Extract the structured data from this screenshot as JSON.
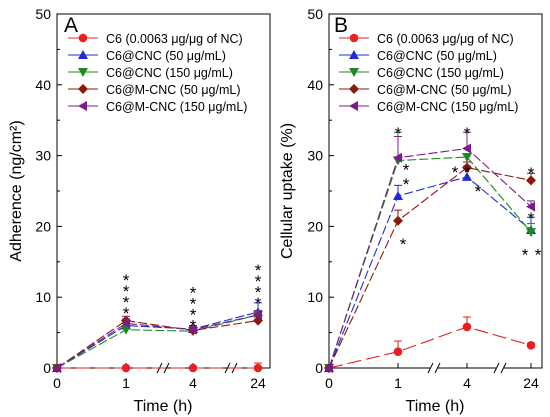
{
  "legend_items": [
    {
      "label": "C6 (0.0063 μg/μg of NC)",
      "color": "#e8201f",
      "marker": "circle"
    },
    {
      "label": "C6@CNC (50 μg/mL)",
      "color": "#1f2bd6",
      "marker": "triangle-up"
    },
    {
      "label": "C6@CNC (150 μg/mL)",
      "color": "#1e8a1e",
      "marker": "triangle-down"
    },
    {
      "label": "C6@M-CNC (50 μg/mL)",
      "color": "#8b1a0d",
      "marker": "diamond"
    },
    {
      "label": "C6@M-CNC (150 μg/mL)",
      "color": "#7a1c8c",
      "marker": "triangle-left"
    }
  ],
  "chart_data": [
    {
      "type": "line",
      "panel_label": "A",
      "ylabel": "Adherence (ng/cm²)",
      "xlabel": "Time (h)",
      "ylim": [
        0,
        50
      ],
      "x_ticks": [
        "0",
        "1",
        "4",
        "24"
      ],
      "y_ticks": [
        "0",
        "10",
        "20",
        "30",
        "40",
        "50"
      ],
      "axis_breaks": "between 1–4 and 4–24",
      "legend_position": "top-left",
      "series": [
        {
          "name": "C6 (0.0063 μg/μg of NC)",
          "values": [
            0,
            0,
            0,
            0
          ],
          "errors": [
            0,
            0,
            0,
            0.7
          ]
        },
        {
          "name": "C6@CNC (50 μg/mL)",
          "values": [
            0,
            6.0,
            5.5,
            7.9
          ],
          "errors": [
            0,
            0.6,
            0.5,
            1.3
          ]
        },
        {
          "name": "C6@CNC (150 μg/mL)",
          "values": [
            0,
            5.4,
            5.2,
            7.5
          ],
          "errors": [
            0,
            0.5,
            0.5,
            0.6
          ]
        },
        {
          "name": "C6@M-CNC (50 μg/mL)",
          "values": [
            0,
            6.7,
            5.3,
            6.7
          ],
          "errors": [
            0,
            0.6,
            0.5,
            0.5
          ]
        },
        {
          "name": "C6@M-CNC (150 μg/mL)",
          "values": [
            0,
            6.3,
            5.4,
            7.5
          ],
          "errors": [
            0,
            0.6,
            0.5,
            0.6
          ]
        }
      ],
      "annotations": [
        {
          "x": "1",
          "text": "****"
        },
        {
          "x": "4",
          "text": "****"
        },
        {
          "x": "24",
          "text": "****"
        }
      ]
    },
    {
      "type": "line",
      "panel_label": "B",
      "ylabel": "Cellular uptake (%)",
      "xlabel": "Time (h)",
      "ylim": [
        0,
        50
      ],
      "x_ticks": [
        "0",
        "1",
        "4",
        "24"
      ],
      "y_ticks": [
        "0",
        "10",
        "20",
        "30",
        "40",
        "50"
      ],
      "axis_breaks": "between 1–4 and 4–24",
      "legend_position": "top-left",
      "series": [
        {
          "name": "C6 (0.0063 μg/μg of NC)",
          "values": [
            0,
            2.3,
            5.8,
            3.2
          ],
          "errors": [
            0,
            1.5,
            1.4,
            0.3
          ]
        },
        {
          "name": "C6@CNC (50 μg/mL)",
          "values": [
            0,
            24.3,
            27.0,
            19.5
          ],
          "errors": [
            0,
            1.5,
            1.5,
            1.8
          ]
        },
        {
          "name": "C6@CNC (150 μg/mL)",
          "values": [
            0,
            29.3,
            29.8,
            19.2
          ],
          "errors": [
            0,
            4.0,
            0.5,
            1.2
          ]
        },
        {
          "name": "C6@M-CNC (50 μg/mL)",
          "values": [
            0,
            20.8,
            28.3,
            26.5
          ],
          "errors": [
            0,
            1.5,
            0.8,
            1.0
          ]
        },
        {
          "name": "C6@M-CNC (150 μg/mL)",
          "values": [
            0,
            29.7,
            31.0,
            22.8
          ],
          "errors": [
            0,
            3.0,
            2.3,
            0.8
          ]
        }
      ],
      "annotations": [
        {
          "x": "1",
          "y": 33.5,
          "text": "*"
        },
        {
          "x": "1",
          "y": 28.3,
          "text": "*"
        },
        {
          "x": "1",
          "y": 26.3,
          "text": "*"
        },
        {
          "x": "1",
          "y": 17.8,
          "text": "*"
        },
        {
          "x": "4",
          "y": 33.5,
          "text": "*"
        },
        {
          "x": "4",
          "y": 28.0,
          "text": "*"
        },
        {
          "x": "4",
          "y": 25.3,
          "text": "*"
        },
        {
          "x": "4",
          "y": 28.0,
          "text": "*"
        },
        {
          "x": "24",
          "y": 27.8,
          "text": "*"
        },
        {
          "x": "24",
          "y": 21.5,
          "text": "*"
        },
        {
          "x": "24",
          "y": 16.3,
          "text": "*"
        },
        {
          "x": "24",
          "y": 16.3,
          "text": "*"
        }
      ]
    }
  ]
}
